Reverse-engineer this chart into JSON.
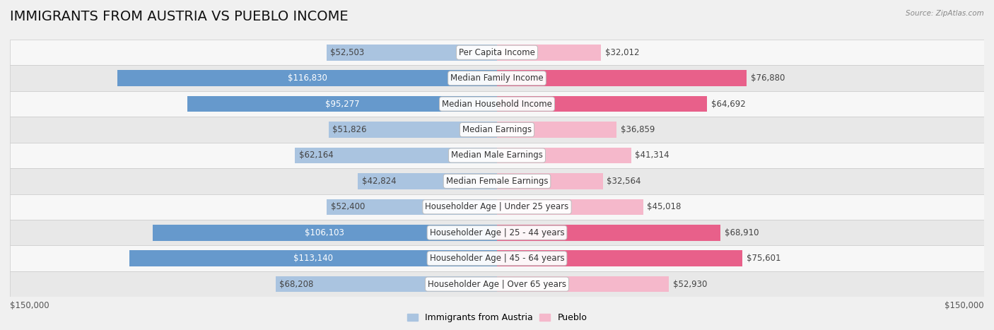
{
  "title": "IMMIGRANTS FROM AUSTRIA VS PUEBLO INCOME",
  "source": "Source: ZipAtlas.com",
  "categories": [
    "Per Capita Income",
    "Median Family Income",
    "Median Household Income",
    "Median Earnings",
    "Median Male Earnings",
    "Median Female Earnings",
    "Householder Age | Under 25 years",
    "Householder Age | 25 - 44 years",
    "Householder Age | 45 - 64 years",
    "Householder Age | Over 65 years"
  ],
  "austria_values": [
    52503,
    116830,
    95277,
    51826,
    62164,
    42824,
    52400,
    106103,
    113140,
    68208
  ],
  "pueblo_values": [
    32012,
    76880,
    64692,
    36859,
    41314,
    32564,
    45018,
    68910,
    75601,
    52930
  ],
  "austria_color_light": "#aac4e0",
  "austria_color_dark": "#6699cc",
  "pueblo_color_light": "#f5b8cb",
  "pueblo_color_dark": "#e8608a",
  "max_value": 150000,
  "background_color": "#f0f0f0",
  "row_bg_light": "#f7f7f7",
  "row_bg_dark": "#e8e8e8",
  "bar_height": 0.62,
  "title_fontsize": 14,
  "label_fontsize": 8.5,
  "value_fontsize": 8.5,
  "axis_label": "$150,000",
  "legend_austria": "Immigrants from Austria",
  "legend_pueblo": "Pueblo"
}
